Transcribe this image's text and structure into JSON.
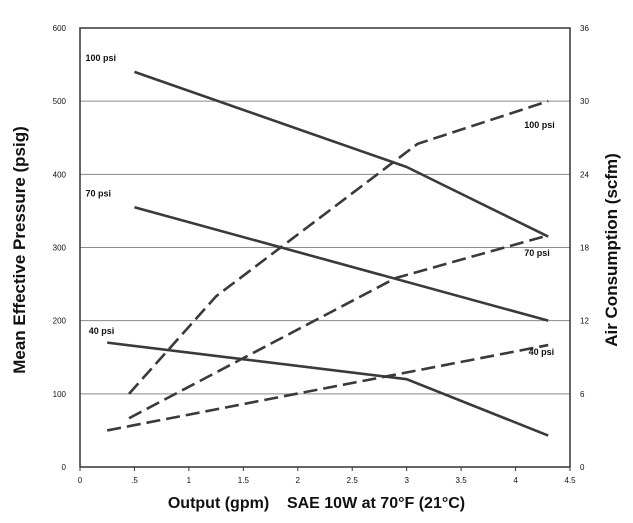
{
  "chart_data": {
    "type": "line",
    "xlabel": "Output (gpm)",
    "xlabel_note": "SAE 10W at 70°F (21°C)",
    "ylabel_left": "Mean Effective Pressure (psig)",
    "ylabel_right": "Air Consumption (scfm)",
    "xlim": [
      0,
      4.5
    ],
    "ylim_left": [
      0,
      600
    ],
    "ylim_right": [
      0,
      36
    ],
    "x_ticks": [
      "0",
      ".5",
      "1",
      "1.5",
      "2",
      "2.5",
      "3",
      "3.5",
      "4",
      "4.5"
    ],
    "y_left_ticks": [
      "0",
      "100",
      "200",
      "300",
      "400",
      "500",
      "600"
    ],
    "y_right_ticks": [
      "0",
      "6",
      "12",
      "18",
      "24",
      "30",
      "36"
    ],
    "grid": "horizontal",
    "series": [
      {
        "name": "100 psi",
        "axis": "left",
        "style": "solid",
        "x": [
          0.5,
          3.0,
          4.3
        ],
        "y": [
          540,
          410,
          315
        ]
      },
      {
        "name": "70 psi",
        "axis": "left",
        "style": "solid",
        "x": [
          0.5,
          4.3
        ],
        "y": [
          355,
          200
        ]
      },
      {
        "name": "40 psi",
        "axis": "left",
        "style": "solid",
        "x": [
          0.25,
          3.0,
          4.3
        ],
        "y": [
          170,
          120,
          43
        ]
      },
      {
        "name": "100 psi",
        "axis": "right",
        "style": "dashed",
        "x": [
          0.45,
          1.25,
          3.1,
          4.3
        ],
        "y": [
          6,
          14,
          26.5,
          30
        ]
      },
      {
        "name": "70 psi",
        "axis": "right",
        "style": "dashed",
        "x": [
          0.45,
          2.9,
          4.3
        ],
        "y": [
          4,
          15.5,
          19
        ]
      },
      {
        "name": "40 psi",
        "axis": "right",
        "style": "dashed",
        "x": [
          0.25,
          4.3
        ],
        "y": [
          3,
          10
        ]
      }
    ],
    "annotations": [
      {
        "text": "100 psi",
        "x": 0.05,
        "y": 555,
        "axis": "left"
      },
      {
        "text": "70 psi",
        "x": 0.05,
        "y": 370,
        "axis": "left"
      },
      {
        "text": "40 psi",
        "x": 0.08,
        "y": 182,
        "axis": "left"
      },
      {
        "text": "100 psi",
        "x": 4.08,
        "y": 27.8,
        "axis": "right"
      },
      {
        "text": "70 psi",
        "x": 4.08,
        "y": 17.3,
        "axis": "right"
      },
      {
        "text": "40 psi",
        "x": 4.12,
        "y": 9.2,
        "axis": "right"
      }
    ]
  },
  "colors": {
    "line": "#3a3a3a",
    "grid": "#8a8a8a",
    "frame": "#333333",
    "text": "#111111"
  }
}
